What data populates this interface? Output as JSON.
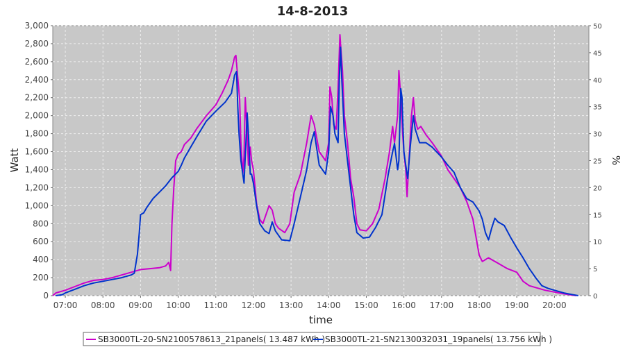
{
  "chart_data": {
    "type": "line",
    "title": "14-8-2013",
    "xlabel": "time",
    "ylabel": "Watt",
    "y2label": "%",
    "x_ticks": [
      "07:00",
      "08:00",
      "09:00",
      "10:00",
      "11:00",
      "12:00",
      "13:00",
      "14:00",
      "15:00",
      "16:00",
      "17:00",
      "18:00",
      "19:00",
      "20:00"
    ],
    "xlim": [
      "06:40",
      "20:55"
    ],
    "ylim": [
      0,
      3000
    ],
    "y_ticks": [
      0,
      200,
      400,
      600,
      800,
      1000,
      1200,
      1400,
      1600,
      1800,
      2000,
      2200,
      2400,
      2600,
      2800,
      3000
    ],
    "y_tick_labels": [
      "0",
      "200",
      "400",
      "600",
      "800",
      "1,000",
      "1,200",
      "1,400",
      "1,600",
      "1,800",
      "2,000",
      "2,200",
      "2,400",
      "2,600",
      "2,800",
      "3,000"
    ],
    "y2lim": [
      0,
      50
    ],
    "y2_ticks": [
      0,
      5,
      10,
      15,
      20,
      25,
      30,
      35,
      40,
      45,
      50
    ],
    "grid": true,
    "legend_position": "bottom",
    "background": "#c8c8c8",
    "series": [
      {
        "name": "SB3000TL-20-SN2100578613_21panels( 13.487 kWh )",
        "color": "#cc00cc",
        "points": [
          [
            "06:40",
            0
          ],
          [
            "06:45",
            30
          ],
          [
            "06:50",
            40
          ],
          [
            "07:00",
            60
          ],
          [
            "07:15",
            100
          ],
          [
            "07:30",
            140
          ],
          [
            "07:45",
            170
          ],
          [
            "08:00",
            180
          ],
          [
            "08:15",
            200
          ],
          [
            "08:30",
            230
          ],
          [
            "08:45",
            260
          ],
          [
            "09:00",
            290
          ],
          [
            "09:15",
            300
          ],
          [
            "09:30",
            310
          ],
          [
            "09:40",
            330
          ],
          [
            "09:45",
            370
          ],
          [
            "09:48",
            280
          ],
          [
            "09:50",
            800
          ],
          [
            "09:53",
            1200
          ],
          [
            "09:56",
            1500
          ],
          [
            "10:00",
            1570
          ],
          [
            "10:05",
            1600
          ],
          [
            "10:10",
            1680
          ],
          [
            "10:20",
            1750
          ],
          [
            "10:30",
            1860
          ],
          [
            "10:45",
            2000
          ],
          [
            "11:00",
            2120
          ],
          [
            "11:10",
            2250
          ],
          [
            "11:20",
            2400
          ],
          [
            "11:25",
            2500
          ],
          [
            "11:30",
            2650
          ],
          [
            "11:32",
            2670
          ],
          [
            "11:35",
            2420
          ],
          [
            "11:38",
            2180
          ],
          [
            "11:40",
            1700
          ],
          [
            "11:43",
            1350
          ],
          [
            "11:45",
            1550
          ],
          [
            "11:47",
            2200
          ],
          [
            "11:50",
            1800
          ],
          [
            "11:52",
            1450
          ],
          [
            "11:55",
            1650
          ],
          [
            "11:57",
            1500
          ],
          [
            "12:00",
            1400
          ],
          [
            "12:05",
            1020
          ],
          [
            "12:10",
            850
          ],
          [
            "12:15",
            800
          ],
          [
            "12:20",
            900
          ],
          [
            "12:25",
            1000
          ],
          [
            "12:30",
            950
          ],
          [
            "12:35",
            800
          ],
          [
            "12:40",
            750
          ],
          [
            "12:50",
            700
          ],
          [
            "12:58",
            800
          ],
          [
            "13:05",
            1150
          ],
          [
            "13:15",
            1350
          ],
          [
            "13:25",
            1700
          ],
          [
            "13:32",
            2000
          ],
          [
            "13:37",
            1900
          ],
          [
            "13:45",
            1600
          ],
          [
            "13:55",
            1500
          ],
          [
            "14:00",
            1700
          ],
          [
            "14:02",
            2320
          ],
          [
            "14:05",
            2200
          ],
          [
            "14:08",
            1900
          ],
          [
            "14:12",
            1850
          ],
          [
            "14:15",
            2300
          ],
          [
            "14:18",
            2900
          ],
          [
            "14:20",
            2700
          ],
          [
            "14:22",
            2500
          ],
          [
            "14:25",
            2000
          ],
          [
            "14:30",
            1700
          ],
          [
            "14:35",
            1300
          ],
          [
            "14:40",
            1100
          ],
          [
            "14:45",
            800
          ],
          [
            "14:50",
            730
          ],
          [
            "15:00",
            720
          ],
          [
            "15:10",
            800
          ],
          [
            "15:20",
            960
          ],
          [
            "15:30",
            1300
          ],
          [
            "15:37",
            1600
          ],
          [
            "15:42",
            1880
          ],
          [
            "15:45",
            1700
          ],
          [
            "15:50",
            2000
          ],
          [
            "15:52",
            2500
          ],
          [
            "15:55",
            2200
          ],
          [
            "15:58",
            1800
          ],
          [
            "16:00",
            1600
          ],
          [
            "16:03",
            1400
          ],
          [
            "16:05",
            1100
          ],
          [
            "16:08",
            1500
          ],
          [
            "16:12",
            2000
          ],
          [
            "16:15",
            2200
          ],
          [
            "16:18",
            1950
          ],
          [
            "16:22",
            1850
          ],
          [
            "16:27",
            1880
          ],
          [
            "16:35",
            1790
          ],
          [
            "16:45",
            1700
          ],
          [
            "17:00",
            1550
          ],
          [
            "17:10",
            1400
          ],
          [
            "17:20",
            1300
          ],
          [
            "17:30",
            1200
          ],
          [
            "17:40",
            1050
          ],
          [
            "17:50",
            850
          ],
          [
            "17:55",
            650
          ],
          [
            "18:00",
            450
          ],
          [
            "18:05",
            380
          ],
          [
            "18:10",
            400
          ],
          [
            "18:15",
            420
          ],
          [
            "18:20",
            400
          ],
          [
            "18:30",
            360
          ],
          [
            "18:45",
            300
          ],
          [
            "19:00",
            260
          ],
          [
            "19:10",
            160
          ],
          [
            "19:20",
            110
          ],
          [
            "19:30",
            90
          ],
          [
            "19:45",
            60
          ],
          [
            "20:00",
            40
          ],
          [
            "20:15",
            20
          ],
          [
            "20:30",
            5
          ],
          [
            "20:35",
            0
          ]
        ]
      },
      {
        "name": "SB3000TL-21-SN2130032031_19panels( 13.756 kWh )",
        "color": "#0033cc",
        "points": [
          [
            "06:45",
            0
          ],
          [
            "06:55",
            10
          ],
          [
            "07:00",
            30
          ],
          [
            "07:15",
            70
          ],
          [
            "07:30",
            110
          ],
          [
            "07:45",
            140
          ],
          [
            "08:00",
            160
          ],
          [
            "08:15",
            180
          ],
          [
            "08:30",
            200
          ],
          [
            "08:45",
            230
          ],
          [
            "08:50",
            250
          ],
          [
            "08:55",
            460
          ],
          [
            "08:58",
            700
          ],
          [
            "09:00",
            900
          ],
          [
            "09:05",
            920
          ],
          [
            "09:10",
            980
          ],
          [
            "09:20",
            1080
          ],
          [
            "09:30",
            1150
          ],
          [
            "09:40",
            1220
          ],
          [
            "09:50",
            1310
          ],
          [
            "10:00",
            1380
          ],
          [
            "10:05",
            1450
          ],
          [
            "10:10",
            1530
          ],
          [
            "10:20",
            1650
          ],
          [
            "10:30",
            1770
          ],
          [
            "10:45",
            1940
          ],
          [
            "11:00",
            2050
          ],
          [
            "11:15",
            2150
          ],
          [
            "11:25",
            2250
          ],
          [
            "11:30",
            2450
          ],
          [
            "11:33",
            2490
          ],
          [
            "11:35",
            2100
          ],
          [
            "11:37",
            1800
          ],
          [
            "11:40",
            1500
          ],
          [
            "11:45",
            1250
          ],
          [
            "11:48",
            1700
          ],
          [
            "11:50",
            2030
          ],
          [
            "11:52",
            1800
          ],
          [
            "11:55",
            1350
          ],
          [
            "11:57",
            1350
          ],
          [
            "12:00",
            1250
          ],
          [
            "12:05",
            1000
          ],
          [
            "12:10",
            800
          ],
          [
            "12:18",
            720
          ],
          [
            "12:25",
            690
          ],
          [
            "12:30",
            820
          ],
          [
            "12:35",
            720
          ],
          [
            "12:45",
            620
          ],
          [
            "12:58",
            610
          ],
          [
            "13:05",
            800
          ],
          [
            "13:15",
            1100
          ],
          [
            "13:25",
            1400
          ],
          [
            "13:32",
            1700
          ],
          [
            "13:37",
            1820
          ],
          [
            "13:45",
            1450
          ],
          [
            "13:55",
            1350
          ],
          [
            "14:00",
            1600
          ],
          [
            "14:03",
            2100
          ],
          [
            "14:07",
            2000
          ],
          [
            "14:10",
            1800
          ],
          [
            "14:15",
            1700
          ],
          [
            "14:17",
            2400
          ],
          [
            "14:19",
            2760
          ],
          [
            "14:21",
            2400
          ],
          [
            "14:25",
            1800
          ],
          [
            "14:30",
            1500
          ],
          [
            "14:35",
            1200
          ],
          [
            "14:40",
            900
          ],
          [
            "14:45",
            700
          ],
          [
            "14:55",
            640
          ],
          [
            "15:05",
            650
          ],
          [
            "15:15",
            760
          ],
          [
            "15:25",
            900
          ],
          [
            "15:35",
            1350
          ],
          [
            "15:42",
            1600
          ],
          [
            "15:45",
            1690
          ],
          [
            "15:50",
            1400
          ],
          [
            "15:52",
            1500
          ],
          [
            "15:55",
            2300
          ],
          [
            "15:57",
            2200
          ],
          [
            "16:00",
            1600
          ],
          [
            "16:03",
            1450
          ],
          [
            "16:06",
            1300
          ],
          [
            "16:10",
            1650
          ],
          [
            "16:15",
            2000
          ],
          [
            "16:18",
            1850
          ],
          [
            "16:25",
            1700
          ],
          [
            "16:35",
            1700
          ],
          [
            "16:45",
            1650
          ],
          [
            "17:00",
            1540
          ],
          [
            "17:10",
            1450
          ],
          [
            "17:20",
            1370
          ],
          [
            "17:30",
            1200
          ],
          [
            "17:40",
            1080
          ],
          [
            "17:50",
            1040
          ],
          [
            "18:00",
            940
          ],
          [
            "18:05",
            850
          ],
          [
            "18:10",
            700
          ],
          [
            "18:15",
            620
          ],
          [
            "18:20",
            750
          ],
          [
            "18:25",
            860
          ],
          [
            "18:30",
            820
          ],
          [
            "18:40",
            780
          ],
          [
            "18:50",
            650
          ],
          [
            "19:00",
            530
          ],
          [
            "19:10",
            420
          ],
          [
            "19:20",
            300
          ],
          [
            "19:30",
            200
          ],
          [
            "19:40",
            110
          ],
          [
            "19:50",
            80
          ],
          [
            "20:00",
            60
          ],
          [
            "20:15",
            30
          ],
          [
            "20:30",
            10
          ],
          [
            "20:38",
            0
          ]
        ]
      }
    ]
  }
}
